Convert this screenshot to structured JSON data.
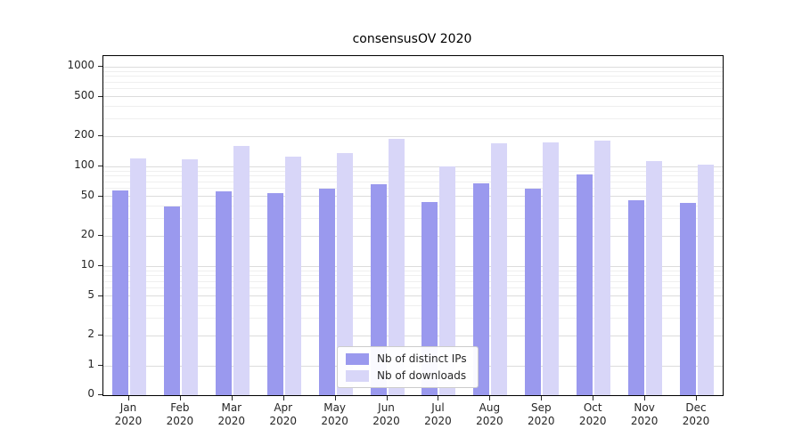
{
  "title": "consensusOV 2020",
  "chart_data": {
    "type": "bar",
    "title": "consensusOV 2020",
    "xlabel": "",
    "ylabel": "",
    "yscale": "symlog",
    "ylim": [
      0,
      1280
    ],
    "grid": true,
    "legend_position": "lower-center-inside",
    "yticks": [
      0,
      1,
      2,
      5,
      10,
      20,
      50,
      100,
      200,
      500,
      1000
    ],
    "categories": [
      "Jan 2020",
      "Feb 2020",
      "Mar 2020",
      "Apr 2020",
      "May 2020",
      "Jun 2020",
      "Jul 2020",
      "Aug 2020",
      "Sep 2020",
      "Oct 2020",
      "Nov 2020",
      "Dec 2020"
    ],
    "series": [
      {
        "name": "Nb of distinct IPs",
        "color": "#9a99ee",
        "values": [
          57,
          40,
          56,
          54,
          60,
          66,
          44,
          68,
          60,
          83,
          46,
          43
        ]
      },
      {
        "name": "Nb of downloads",
        "color": "#d8d6f8",
        "values": [
          120,
          118,
          160,
          125,
          135,
          190,
          100,
          170,
          175,
          182,
          113,
          105
        ]
      }
    ]
  }
}
